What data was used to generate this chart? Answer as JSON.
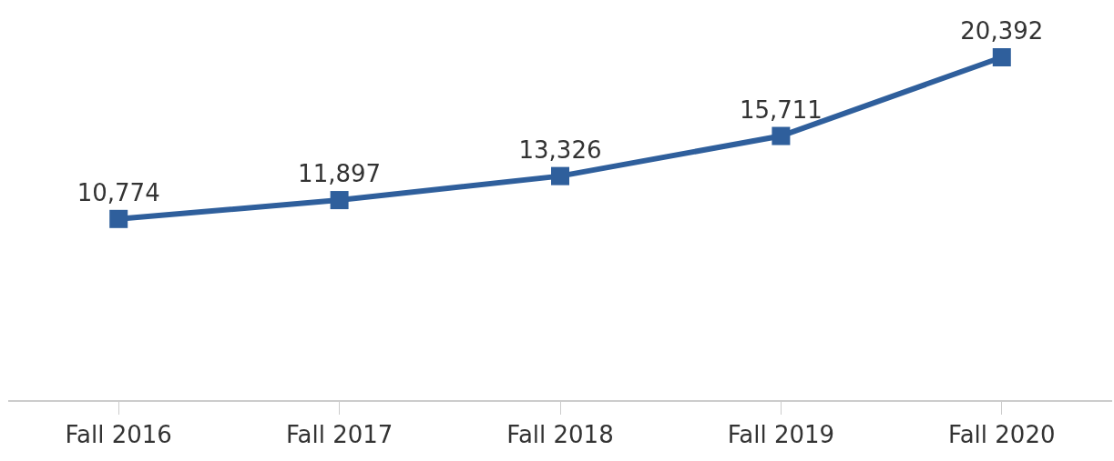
{
  "chart_data": {
    "type": "line",
    "categories": [
      "Fall 2016",
      "Fall 2017",
      "Fall 2018",
      "Fall 2019",
      "Fall 2020"
    ],
    "series": [
      {
        "color": "#2f5f9c",
        "values": [
          10774,
          11897,
          13326,
          15711,
          20392
        ],
        "value_labels": [
          "10,774",
          "11,897",
          "13,326",
          "15,711",
          "20,392"
        ]
      }
    ],
    "marker": "square",
    "line_style": "solid",
    "tick_labels": "x"
  }
}
